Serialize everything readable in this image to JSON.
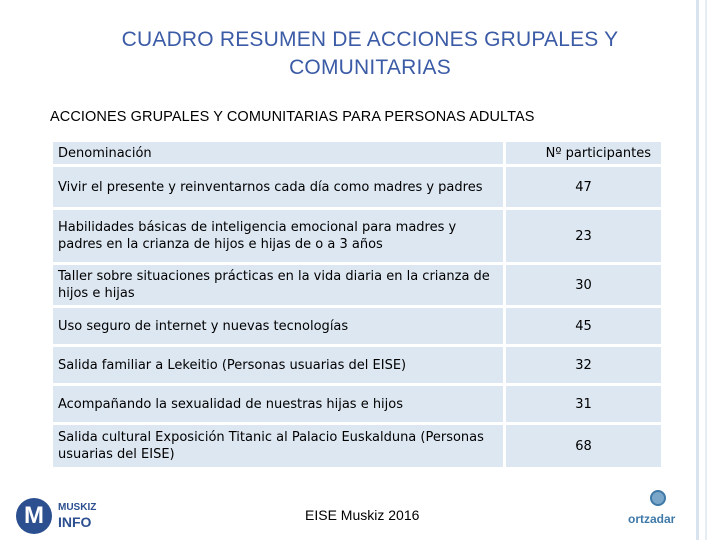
{
  "title": "CUADRO RESUMEN DE ACCIONES GRUPALES Y COMUNITARIAS",
  "subtitle": "ACCIONES GRUPALES Y COMUNITARIAS PARA PERSONAS ADULTAS",
  "table": {
    "header": {
      "name": "Denominación",
      "count": "Nº participantes"
    },
    "rows": [
      {
        "name": "Vivir el presente y reinventarnos cada día como madres y padres",
        "count": "47"
      },
      {
        "name": "Habilidades básicas de inteligencia emocional para madres y padres en la crianza de hijos e hijas de o a 3 años",
        "count": "23"
      },
      {
        "name": "Taller sobre situaciones prácticas en la vida diaria en la crianza de hijos e hijas",
        "count": "30"
      },
      {
        "name": "Uso seguro de internet y nuevas tecnologías",
        "count": "45"
      },
      {
        "name": "Salida familiar a Lekeitio (Personas usuarias del EISE)",
        "count": "32"
      },
      {
        "name": "Acompañando la sexualidad de nuestras hijas e hijos",
        "count": "31"
      },
      {
        "name": "Salida cultural Exposición Titanic al Palacio Euskalduna (Personas usuarias del EISE)",
        "count": "68"
      }
    ]
  },
  "footer": {
    "text": "EISE Muskiz 2016",
    "logo_left": {
      "letter": "M",
      "line1": "MUSKIZ",
      "line2": "INFO"
    },
    "logo_right": {
      "word": "ortzadar"
    }
  },
  "colors": {
    "title": "#3b5ba6",
    "cell": "#dde7f2",
    "logo_blue": "#2c4f8f"
  }
}
